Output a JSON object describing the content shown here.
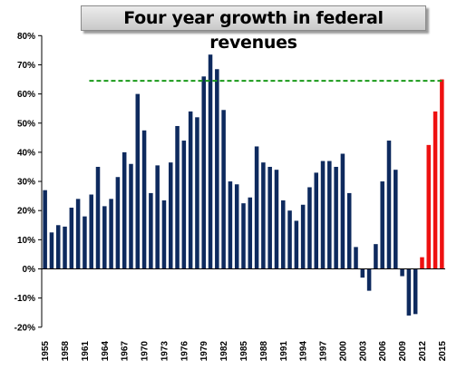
{
  "chart_data": {
    "type": "bar",
    "title": "Four year growth in federal revenues",
    "x_tick_labels": [
      "1955",
      "1958",
      "1961",
      "1964",
      "1967",
      "1970",
      "1973",
      "1976",
      "1979",
      "1982",
      "1985",
      "1988",
      "1991",
      "1994",
      "1997",
      "2000",
      "2003",
      "2006",
      "2009",
      "2012",
      "2015"
    ],
    "y_tick_labels": [
      "-20%",
      "-10%",
      "0%",
      "10%",
      "20%",
      "30%",
      "40%",
      "50%",
      "60%",
      "70%",
      "80%"
    ],
    "ylim": [
      -20,
      80
    ],
    "xlim": [
      1955,
      2015
    ],
    "grid": false,
    "reference_line": {
      "value": 64.5,
      "style": "dashed",
      "color": "#1a9a1a"
    },
    "series": [
      {
        "color": "#0e2a5e",
        "x": [
          1955,
          1956,
          1957,
          1958,
          1959,
          1960,
          1961,
          1962,
          1963,
          1964,
          1965,
          1966,
          1967,
          1968,
          1969,
          1970,
          1971,
          1972,
          1973,
          1974,
          1975,
          1976,
          1977,
          1978,
          1979,
          1980,
          1981,
          1982,
          1983,
          1984,
          1985,
          1986,
          1987,
          1988,
          1989,
          1990,
          1991,
          1992,
          1993,
          1994,
          1995,
          1996,
          1997,
          1998,
          1999,
          2000,
          2001,
          2002,
          2003,
          2004,
          2005,
          2006,
          2007,
          2008,
          2009,
          2010,
          2011
        ],
        "values": [
          27,
          12.5,
          15,
          14.5,
          21,
          24,
          18,
          25.5,
          35,
          21.5,
          24,
          31.5,
          40,
          36,
          60,
          47.5,
          26,
          35.5,
          23.5,
          36.5,
          49,
          44,
          54,
          52,
          66,
          73.5,
          68.5,
          54.5,
          30,
          29,
          22.5,
          24.5,
          42,
          36.5,
          35,
          34,
          23.5,
          20,
          16.5,
          22,
          28,
          33,
          37,
          37,
          35,
          39.5,
          26,
          7.5,
          -3,
          -7.5,
          8.5,
          30,
          44,
          34,
          -2.5,
          -16,
          -15.5
        ]
      },
      {
        "color": "#ee1111",
        "x": [
          2012,
          2013,
          2014,
          2015
        ],
        "values": [
          4,
          42.5,
          54,
          65
        ]
      }
    ]
  },
  "colors": {
    "axis": "#000000",
    "title_bg": "#d9d9d9"
  }
}
